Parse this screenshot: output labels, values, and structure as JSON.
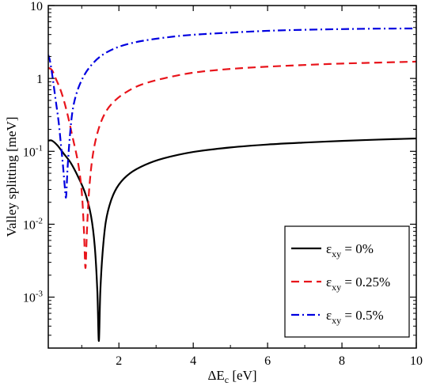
{
  "chart_data": {
    "type": "line",
    "title": "",
    "xlabel_main": "ΔE",
    "xlabel_sub": "c",
    "xlabel_unit": " [eV]",
    "ylabel": "Valley splitting [meV]",
    "xlim": [
      0.1,
      10
    ],
    "ylim": [
      0.0002,
      10
    ],
    "yscale": "log",
    "grid": false,
    "x_ticks": [
      {
        "value": 2,
        "label": "2"
      },
      {
        "value": 4,
        "label": "4"
      },
      {
        "value": 6,
        "label": "6"
      },
      {
        "value": 8,
        "label": "8"
      },
      {
        "value": 10,
        "label": "10"
      }
    ],
    "y_ticks": [
      {
        "value": 10,
        "base": "10",
        "exp": ""
      },
      {
        "value": 1,
        "base": "1",
        "exp": ""
      },
      {
        "value": 0.1,
        "base": "10",
        "exp": "-1"
      },
      {
        "value": 0.01,
        "base": "10",
        "exp": "-2"
      },
      {
        "value": 0.001,
        "base": "10",
        "exp": "-3"
      }
    ],
    "legend_position": "bottom-right",
    "series": [
      {
        "legend_main": "ε",
        "legend_sub": "xy",
        "legend_value": " = 0%",
        "color": "#000000",
        "dash": "solid",
        "x": [
          0.1,
          0.2,
          0.35,
          0.5,
          0.7,
          0.9,
          1.1,
          1.25,
          1.35,
          1.42,
          1.46,
          1.5,
          1.56,
          1.65,
          1.8,
          2.0,
          2.3,
          2.7,
          3.2,
          4.0,
          5.0,
          6.0,
          7.0,
          8.0,
          9.0,
          10.0
        ],
        "y": [
          0.14,
          0.14,
          0.12,
          0.095,
          0.07,
          0.045,
          0.026,
          0.013,
          0.005,
          0.0012,
          0.00025,
          0.0012,
          0.004,
          0.011,
          0.022,
          0.035,
          0.05,
          0.065,
          0.08,
          0.098,
          0.113,
          0.124,
          0.132,
          0.139,
          0.145,
          0.15
        ]
      },
      {
        "legend_main": "ε",
        "legend_sub": "xy",
        "legend_value": " = 0.25%",
        "color": "#e8141b",
        "dash": "dashed",
        "x": [
          0.1,
          0.2,
          0.3,
          0.45,
          0.6,
          0.75,
          0.9,
          1.0,
          1.06,
          1.1,
          1.14,
          1.2,
          1.3,
          1.45,
          1.65,
          1.9,
          2.2,
          2.6,
          3.2,
          4.0,
          5.0,
          6.0,
          7.0,
          8.0,
          9.0,
          10.0
        ],
        "y": [
          1.4,
          1.3,
          1.0,
          0.65,
          0.35,
          0.16,
          0.07,
          0.028,
          0.008,
          0.0025,
          0.008,
          0.03,
          0.09,
          0.2,
          0.35,
          0.5,
          0.65,
          0.82,
          1.0,
          1.2,
          1.35,
          1.45,
          1.53,
          1.6,
          1.65,
          1.7
        ]
      },
      {
        "legend_main": "ε",
        "legend_sub": "xy",
        "legend_value": " = 0.5%",
        "color": "#0000e0",
        "dash": "dashdot",
        "x": [
          0.1,
          0.15,
          0.22,
          0.3,
          0.38,
          0.45,
          0.5,
          0.55,
          0.58,
          0.62,
          0.68,
          0.75,
          0.85,
          1.0,
          1.2,
          1.5,
          1.9,
          2.4,
          3.0,
          3.8,
          4.8,
          6.0,
          7.0,
          8.0,
          9.0,
          10.0
        ],
        "y": [
          2.1,
          1.7,
          1.0,
          0.5,
          0.25,
          0.11,
          0.06,
          0.03,
          0.024,
          0.06,
          0.16,
          0.35,
          0.6,
          0.95,
          1.4,
          2.0,
          2.6,
          3.1,
          3.5,
          3.9,
          4.2,
          4.5,
          4.65,
          4.75,
          4.82,
          4.85
        ]
      }
    ]
  }
}
